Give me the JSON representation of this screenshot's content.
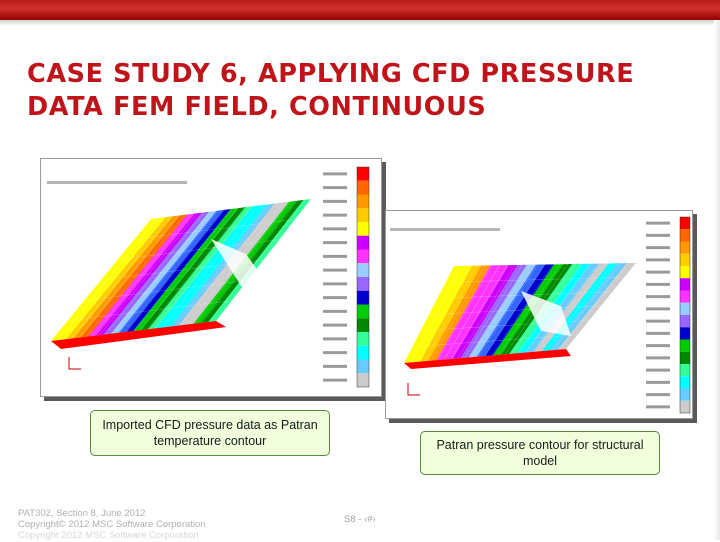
{
  "slide": {
    "title_line1": "CASE STUDY 6, APPLYING CFD PRESSURE",
    "title_line2": "DATA FEM FIELD, CONTINUOUS"
  },
  "captions": {
    "left": "Imported CFD pressure data as Patran temperature contour",
    "right": "Patran pressure contour for structural model"
  },
  "footer": {
    "line1": "PAT302, Section 8, June 2012",
    "line2": "Copyright© 2012 MSC Software Corporation",
    "line3": "Copyright 2012 MSC Software Corporation",
    "slide_number": "S8 - ‹#›"
  },
  "colors": {
    "title": "#c0141b",
    "top_bar": "#c62828",
    "caption_fill": "#f0ffdc",
    "caption_border": "#5a8a3a"
  },
  "contour_colors": [
    "#ffff00",
    "#ffcc00",
    "#ff9900",
    "#ff6600",
    "#ff33ff",
    "#cc00ff",
    "#9966ff",
    "#99ccff",
    "#3366ff",
    "#0000cc",
    "#00cc00",
    "#008800",
    "#33ff99",
    "#00ffff",
    "#66ccff",
    "#cccccc",
    "#ff0000"
  ]
}
